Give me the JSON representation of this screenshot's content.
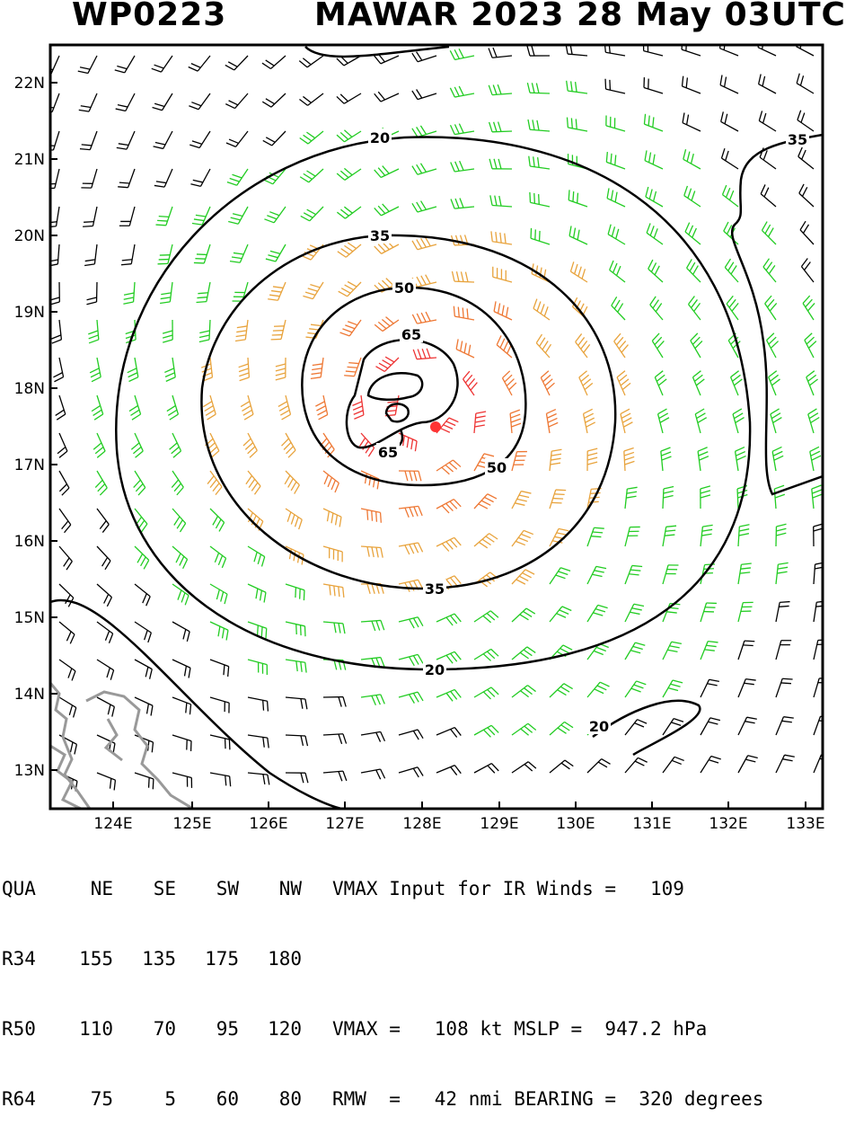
{
  "header": {
    "storm_id": "WP0223",
    "title": "MAWAR 2023 28 May 03UTC"
  },
  "map": {
    "lat_labels": [
      "22N",
      "21N",
      "20N",
      "19N",
      "18N",
      "17N",
      "16N",
      "15N",
      "14N",
      "13N"
    ],
    "lon_labels": [
      "124E",
      "125E",
      "126E",
      "127E",
      "128E",
      "129E",
      "130E",
      "131E",
      "132E",
      "133E"
    ],
    "contour_labels": [
      "20",
      "35",
      "50",
      "65",
      "65",
      "50",
      "35",
      "20",
      "20",
      "35"
    ],
    "colors": {
      "barb_weak": "#000000",
      "barb_34": "#22cc22",
      "barb_50": "#e8a33c",
      "barb_64": "#ee7733",
      "barb_core": "#ee3333",
      "center_marker": "#ff3333",
      "land": "#999999"
    },
    "center": {
      "lat": 17.5,
      "lon": 128.2
    }
  },
  "stats": {
    "header_row": [
      "QUA",
      "NE",
      "SE",
      "SW",
      "NW"
    ],
    "rows": [
      {
        "label": "R34",
        "values": [
          "155",
          "135",
          "175",
          "180"
        ],
        "note": ""
      },
      {
        "label": "R50",
        "values": [
          "110",
          "70",
          "95",
          "120"
        ],
        "note": "VMAX =   108 kt MSLP =  947.2 hPa"
      },
      {
        "label": "R64",
        "values": [
          "75",
          "5",
          "60",
          "80"
        ],
        "note": "RMW  =   42 nmi BEARING =  320 degrees"
      }
    ],
    "vmax_input_label": "VMAX Input for IR Winds =   109"
  }
}
